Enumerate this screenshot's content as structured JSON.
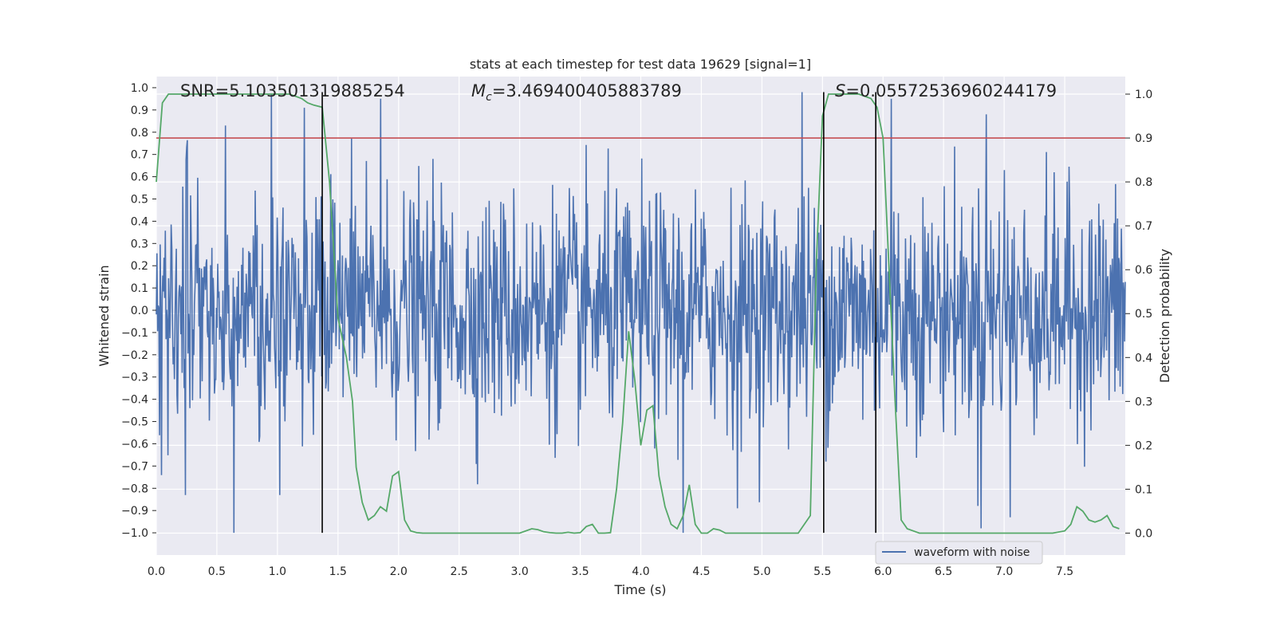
{
  "chart_data": {
    "type": "line",
    "title": "stats at each timestep for test data 19629 [signal=1]",
    "xlabel": "Time (s)",
    "ylabel_left": "Whitened strain",
    "ylabel_right": "Detection probability",
    "xlim": [
      0.0,
      8.0
    ],
    "ylim_left": [
      -1.1,
      1.05
    ],
    "ylim_right": [
      -0.05,
      1.04
    ],
    "x_ticks": [
      "0.0",
      "0.5",
      "1.0",
      "1.5",
      "2.0",
      "2.5",
      "3.0",
      "3.5",
      "4.0",
      "4.5",
      "5.0",
      "5.5",
      "6.0",
      "6.5",
      "7.0",
      "7.5"
    ],
    "y_ticks_left": [
      "1.0",
      "0.9",
      "0.8",
      "0.7",
      "0.6",
      "0.5",
      "0.4",
      "0.3",
      "0.2",
      "0.1",
      "0.0",
      "−0.1",
      "−0.2",
      "−0.3",
      "−0.4",
      "−0.5",
      "−0.6",
      "−0.7",
      "−0.8",
      "−0.9",
      "−1.0"
    ],
    "y_ticks_right": [
      "1.0",
      "0.9",
      "0.8",
      "0.7",
      "0.6",
      "0.5",
      "0.4",
      "0.3",
      "0.2",
      "0.1",
      "0.0"
    ],
    "grid": true,
    "legend": {
      "entries": [
        "waveform with noise"
      ],
      "location": "lower right"
    },
    "annotations": {
      "snr_text": "SNR=5.103501319885254",
      "mc_value": "=3.469400405883789",
      "mc_symbol": "M",
      "mc_subscript": "c",
      "s_symbol": "S",
      "s_value": "=0.05572536960244179"
    },
    "threshold": {
      "axis": "right",
      "value": 0.9
    },
    "vertical_lines": [
      1.37,
      5.51,
      5.94
    ],
    "series": [
      {
        "name": "waveform with noise",
        "axis": "left",
        "kind": "noise",
        "x_range": [
          0.0,
          8.0
        ],
        "y_range": [
          -1.0,
          1.0
        ],
        "peaks_positive": [
          {
            "x": 0.57,
            "y": 0.83
          },
          {
            "x": 0.95,
            "y": 0.97
          },
          {
            "x": 1.22,
            "y": 0.91
          },
          {
            "x": 1.85,
            "y": 0.95
          },
          {
            "x": 5.33,
            "y": 0.98
          },
          {
            "x": 6.07,
            "y": 0.95
          },
          {
            "x": 6.85,
            "y": 0.88
          },
          {
            "x": 7.0,
            "y": 0.63
          }
        ],
        "peaks_negative": [
          {
            "x": 0.24,
            "y": -0.83
          },
          {
            "x": 0.64,
            "y": -1.0
          },
          {
            "x": 1.02,
            "y": -0.83
          },
          {
            "x": 4.35,
            "y": -1.0
          },
          {
            "x": 4.8,
            "y": -0.89
          },
          {
            "x": 6.81,
            "y": -0.98
          },
          {
            "x": 7.05,
            "y": -0.93
          }
        ],
        "color": "#4c72b0"
      },
      {
        "name": "",
        "axis": "right",
        "color": "#55a868",
        "x": [
          0.0,
          0.05,
          0.1,
          0.2,
          0.3,
          0.5,
          0.7,
          0.9,
          1.0,
          1.1,
          1.2,
          1.25,
          1.3,
          1.37,
          1.43,
          1.5,
          1.57,
          1.62,
          1.65,
          1.7,
          1.75,
          1.8,
          1.85,
          1.9,
          1.95,
          2.0,
          2.05,
          2.1,
          2.15,
          2.2,
          2.3,
          2.5,
          2.7,
          2.9,
          3.0,
          3.1,
          3.15,
          3.2,
          3.25,
          3.3,
          3.35,
          3.4,
          3.45,
          3.5,
          3.55,
          3.6,
          3.65,
          3.7,
          3.75,
          3.8,
          3.85,
          3.9,
          3.95,
          4.0,
          4.05,
          4.1,
          4.15,
          4.2,
          4.25,
          4.3,
          4.35,
          4.4,
          4.45,
          4.5,
          4.55,
          4.6,
          4.65,
          4.7,
          4.75,
          4.8,
          4.85,
          4.9,
          4.95,
          5.0,
          5.1,
          5.2,
          5.3,
          5.4,
          5.45,
          5.5,
          5.55,
          5.6,
          5.65,
          5.7,
          5.8,
          5.9,
          5.95,
          6.0,
          6.05,
          6.1,
          6.15,
          6.2,
          6.3,
          6.5,
          6.7,
          6.9,
          7.0,
          7.2,
          7.4,
          7.5,
          7.55,
          7.6,
          7.65,
          7.7,
          7.75,
          7.8,
          7.85,
          7.9,
          7.95
        ],
        "y": [
          0.8,
          0.98,
          1.0,
          1.0,
          1.0,
          1.0,
          1.0,
          1.0,
          1.0,
          1.0,
          0.99,
          0.98,
          0.975,
          0.97,
          0.8,
          0.49,
          0.4,
          0.3,
          0.15,
          0.07,
          0.03,
          0.04,
          0.06,
          0.05,
          0.13,
          0.14,
          0.03,
          0.005,
          0.001,
          0.0,
          0.0,
          0.0,
          0.0,
          0.0,
          0.0,
          0.01,
          0.008,
          0.003,
          0.001,
          0.0,
          0.0,
          0.002,
          0.0,
          0.001,
          0.015,
          0.02,
          0.0,
          0.0,
          0.001,
          0.1,
          0.25,
          0.46,
          0.35,
          0.2,
          0.28,
          0.29,
          0.13,
          0.06,
          0.02,
          0.01,
          0.04,
          0.11,
          0.02,
          0.0,
          0.0,
          0.01,
          0.007,
          0.0,
          0.0,
          0.0,
          0.0,
          0.0,
          0.0,
          0.0,
          0.0,
          0.0,
          0.0,
          0.04,
          0.62,
          0.95,
          1.0,
          1.0,
          1.0,
          1.0,
          1.0,
          0.99,
          0.97,
          0.9,
          0.6,
          0.3,
          0.03,
          0.01,
          0.0,
          0.0,
          0.0,
          0.0,
          0.0,
          0.0,
          0.0,
          0.005,
          0.02,
          0.06,
          0.05,
          0.03,
          0.025,
          0.03,
          0.04,
          0.015,
          0.01
        ]
      }
    ]
  }
}
